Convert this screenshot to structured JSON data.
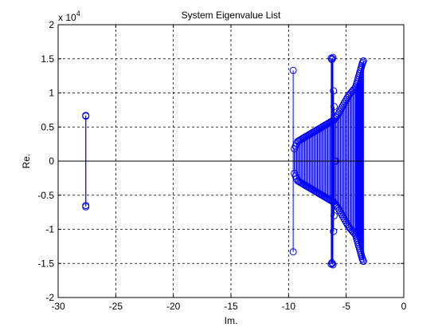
{
  "chart_data": {
    "type": "scatter",
    "title": "System Eigenvalue List",
    "xlabel": "Im.",
    "ylabel": "Re.",
    "scale_multiplier_prefix": "x 10",
    "scale_multiplier_exponent": "4",
    "xlim": [
      -30,
      0
    ],
    "ylim": [
      -2,
      2
    ],
    "xticks": [
      -30,
      -25,
      -20,
      -15,
      -10,
      -5,
      0
    ],
    "yticks": [
      -2,
      -1.5,
      -1,
      -0.5,
      0,
      0.5,
      1,
      1.5,
      2
    ],
    "grid": true,
    "series_color": "#0000ff",
    "marker": "circle",
    "style": "stem pairs (conjugate)",
    "pairs": [
      [
        -27.6,
        0.66,
        -0.65
      ],
      [
        -27.6,
        0.67,
        -0.67
      ],
      [
        -9.6,
        1.33,
        -1.33
      ],
      [
        -6.3,
        1.51,
        -1.51
      ],
      [
        -6.25,
        1.49,
        -1.49
      ],
      [
        -6.2,
        1.5,
        -1.5
      ],
      [
        -6.15,
        1.52,
        -1.52
      ],
      [
        -6.1,
        1.03,
        -1.03
      ],
      [
        -6.05,
        0.8,
        -0.8
      ],
      [
        -9.5,
        0.18,
        -0.18
      ],
      [
        -9.4,
        0.22,
        -0.22
      ],
      [
        -9.3,
        0.26,
        -0.26
      ],
      [
        -9.2,
        0.29,
        -0.29
      ],
      [
        -9.1,
        0.3,
        -0.3
      ],
      [
        -9.0,
        0.31,
        -0.31
      ],
      [
        -8.9,
        0.32,
        -0.32
      ],
      [
        -8.8,
        0.33,
        -0.33
      ],
      [
        -8.7,
        0.34,
        -0.34
      ],
      [
        -8.6,
        0.35,
        -0.35
      ],
      [
        -8.5,
        0.36,
        -0.36
      ],
      [
        -8.4,
        0.37,
        -0.37
      ],
      [
        -8.3,
        0.38,
        -0.38
      ],
      [
        -8.2,
        0.39,
        -0.39
      ],
      [
        -8.1,
        0.4,
        -0.4
      ],
      [
        -8.0,
        0.41,
        -0.41
      ],
      [
        -7.9,
        0.42,
        -0.42
      ],
      [
        -7.8,
        0.43,
        -0.43
      ],
      [
        -7.7,
        0.44,
        -0.44
      ],
      [
        -7.6,
        0.45,
        -0.45
      ],
      [
        -7.5,
        0.46,
        -0.46
      ],
      [
        -7.4,
        0.47,
        -0.47
      ],
      [
        -7.3,
        0.48,
        -0.48
      ],
      [
        -7.2,
        0.49,
        -0.49
      ],
      [
        -7.1,
        0.5,
        -0.5
      ],
      [
        -7.0,
        0.51,
        -0.51
      ],
      [
        -6.9,
        0.52,
        -0.52
      ],
      [
        -6.8,
        0.53,
        -0.53
      ],
      [
        -6.7,
        0.54,
        -0.54
      ],
      [
        -6.6,
        0.55,
        -0.55
      ],
      [
        -6.5,
        0.56,
        -0.56
      ],
      [
        -6.4,
        0.57,
        -0.57
      ],
      [
        -6.3,
        0.58,
        -0.58
      ],
      [
        -6.2,
        0.59,
        -0.59
      ],
      [
        -6.1,
        0.6,
        -0.6
      ],
      [
        -6.0,
        0.62,
        -0.62
      ],
      [
        -5.9,
        0.64,
        -0.64
      ],
      [
        -5.8,
        0.66,
        -0.66
      ],
      [
        -5.7,
        0.69,
        -0.69
      ],
      [
        -5.6,
        0.72,
        -0.72
      ],
      [
        -5.5,
        0.75,
        -0.75
      ],
      [
        -5.4,
        0.78,
        -0.78
      ],
      [
        -5.3,
        0.81,
        -0.81
      ],
      [
        -5.2,
        0.84,
        -0.84
      ],
      [
        -5.1,
        0.87,
        -0.87
      ],
      [
        -5.0,
        0.9,
        -0.9
      ],
      [
        -4.9,
        0.93,
        -0.93
      ],
      [
        -4.8,
        0.96,
        -0.96
      ],
      [
        -4.7,
        0.98,
        -0.98
      ],
      [
        -4.6,
        1.0,
        -1.0
      ],
      [
        -4.5,
        1.02,
        -1.02
      ],
      [
        -4.4,
        1.04,
        -1.04
      ],
      [
        -4.3,
        1.06,
        -1.06
      ],
      [
        -4.2,
        1.08,
        -1.08
      ],
      [
        -4.15,
        1.1,
        -1.1
      ],
      [
        -4.1,
        1.13,
        -1.13
      ],
      [
        -4.05,
        1.16,
        -1.16
      ],
      [
        -4.0,
        1.19,
        -1.19
      ],
      [
        -3.95,
        1.22,
        -1.22
      ],
      [
        -3.9,
        1.25,
        -1.25
      ],
      [
        -3.85,
        1.28,
        -1.28
      ],
      [
        -3.8,
        1.31,
        -1.31
      ],
      [
        -3.75,
        1.34,
        -1.34
      ],
      [
        -3.7,
        1.37,
        -1.37
      ],
      [
        -3.65,
        1.4,
        -1.4
      ],
      [
        -3.6,
        1.43,
        -1.43
      ],
      [
        -3.55,
        1.45,
        -1.45
      ],
      [
        -3.5,
        1.47,
        -1.47
      ]
    ],
    "singles": [
      [
        -6.0,
        0.0
      ],
      [
        -5.9,
        0.0
      ]
    ]
  }
}
